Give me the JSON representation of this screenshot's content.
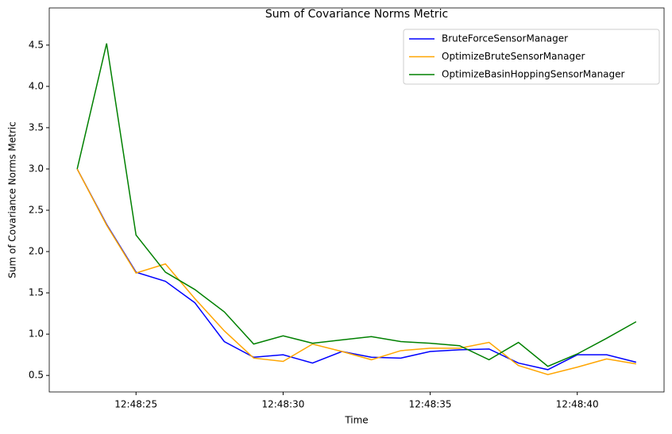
{
  "chart_data": {
    "type": "line",
    "title": "Sum of Covariance Norms Metric",
    "x_label": "Time",
    "y_label": "Sum of Covariance Norms Metric",
    "x": [
      "12:48:23",
      "12:48:24",
      "12:48:25",
      "12:48:26",
      "12:48:27",
      "12:48:28",
      "12:48:29",
      "12:48:30",
      "12:48:31",
      "12:48:32",
      "12:48:33",
      "12:48:34",
      "12:48:35",
      "12:48:36",
      "12:48:37",
      "12:48:38",
      "12:48:39",
      "12:48:40",
      "12:48:41",
      "12:48:42"
    ],
    "series": [
      {
        "name": "BruteForceSensorManager",
        "color": "#0000ff",
        "values": [
          3.0,
          2.33,
          1.75,
          1.64,
          1.38,
          0.91,
          0.72,
          0.75,
          0.65,
          0.79,
          0.72,
          0.71,
          0.79,
          0.81,
          0.82,
          0.65,
          0.57,
          0.75,
          0.75,
          0.66
        ]
      },
      {
        "name": "OptimizeBruteSensorManager",
        "color": "#ffa500",
        "values": [
          3.0,
          2.32,
          1.74,
          1.85,
          1.43,
          1.04,
          0.71,
          0.67,
          0.88,
          0.79,
          0.69,
          0.8,
          0.83,
          0.83,
          0.9,
          0.62,
          0.51,
          0.6,
          0.7,
          0.64
        ]
      },
      {
        "name": "OptimizeBasinHoppingSensorManager",
        "color": "#008000",
        "values": [
          3.0,
          4.52,
          2.2,
          1.75,
          1.54,
          1.27,
          0.88,
          0.98,
          0.89,
          0.93,
          0.97,
          0.91,
          0.89,
          0.86,
          0.69,
          0.9,
          0.61,
          0.76,
          0.95,
          1.15
        ]
      }
    ],
    "xlim": [
      "12:48:22.05",
      "12:48:42.95"
    ],
    "xticks": [
      "12:48:25",
      "12:48:30",
      "12:48:35",
      "12:48:40"
    ],
    "ylim": [
      0.3,
      4.95
    ],
    "yticks": [
      0.5,
      {
        "value": 1,
        "label": "1.0"
      },
      1.5,
      {
        "value": 2,
        "label": "2.0"
      },
      2.5,
      {
        "value": 3,
        "label": "3.0"
      },
      3.5,
      {
        "value": 4,
        "label": "4.0"
      },
      4.5
    ],
    "legend": "upper right"
  }
}
